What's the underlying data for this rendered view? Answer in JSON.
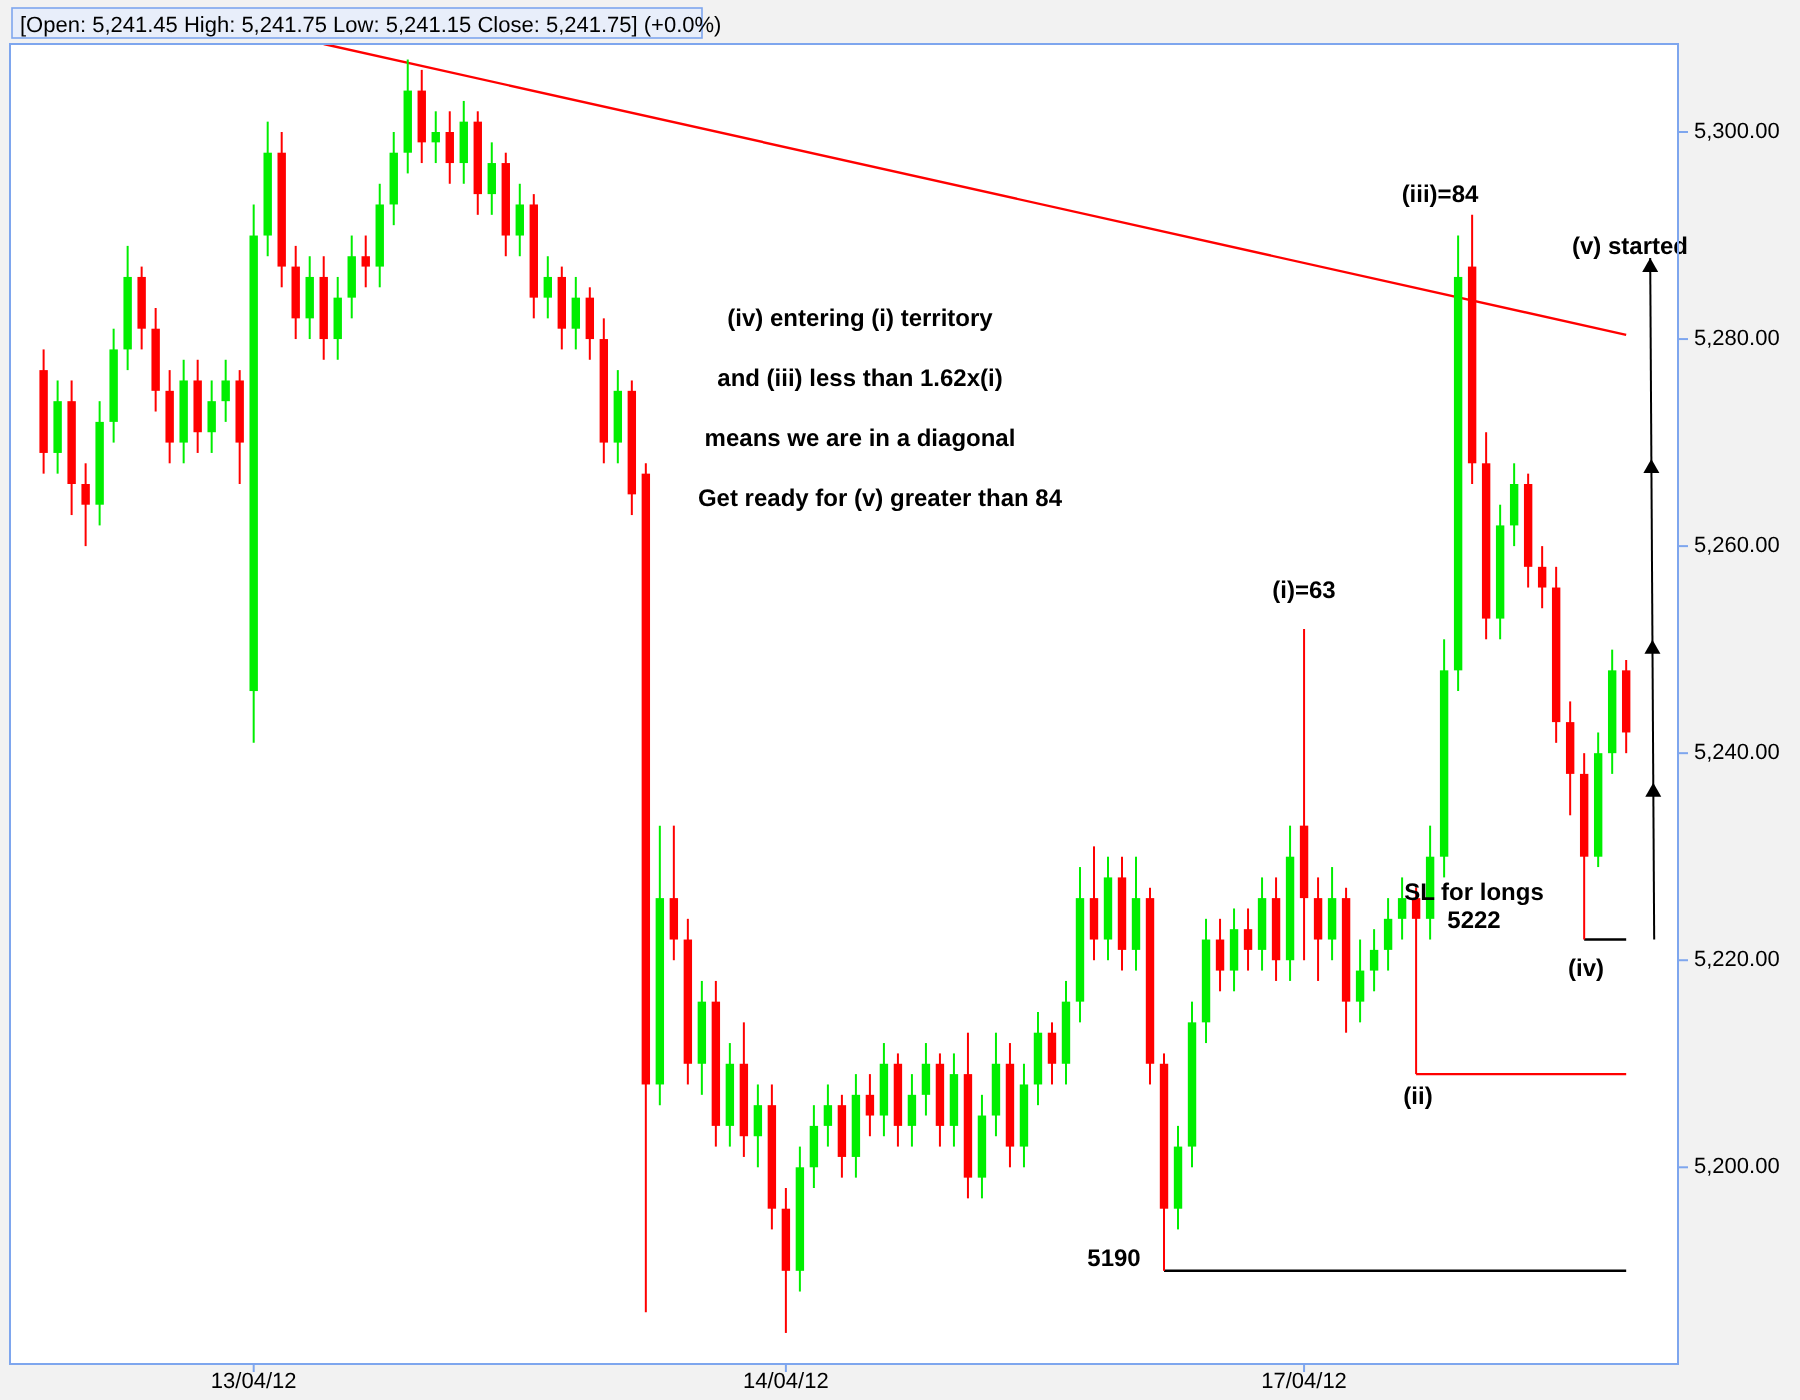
{
  "chart_data": {
    "type": "candlestick",
    "title": "[Open: 5,241.45 High: 5,241.75 Low: 5,241.15 Close: 5,241.75] (+0.0%)",
    "categories": [
      null,
      null,
      null,
      null,
      null,
      null,
      null,
      null,
      null,
      null,
      null,
      null,
      null,
      null,
      null,
      "13/04/12",
      null,
      null,
      null,
      null,
      null,
      null,
      null,
      null,
      null,
      null,
      null,
      null,
      null,
      null,
      null,
      null,
      null,
      null,
      null,
      null,
      null,
      null,
      null,
      null,
      null,
      null,
      null,
      null,
      null,
      null,
      null,
      null,
      null,
      null,
      null,
      null,
      null,
      "14/04/12",
      null,
      null,
      null,
      null,
      null,
      null,
      null,
      null,
      null,
      null,
      null,
      null,
      null,
      null,
      null,
      null,
      null,
      null,
      null,
      null,
      null,
      null,
      null,
      null,
      null,
      null,
      null,
      null,
      null,
      null,
      null,
      null,
      null,
      null,
      null,
      null,
      "17/04/12",
      null,
      null,
      null,
      null,
      null,
      null,
      null,
      null,
      null,
      null,
      null,
      null,
      null,
      null,
      null,
      null,
      null,
      null,
      null,
      null,
      null,
      null,
      null
    ],
    "ohlc": [
      [
        5277,
        5279,
        5267,
        5269
      ],
      [
        5269,
        5276,
        5267,
        5274
      ],
      [
        5274,
        5276,
        5263,
        5266
      ],
      [
        5266,
        5268,
        5260,
        5264
      ],
      [
        5264,
        5274,
        5262,
        5272
      ],
      [
        5272,
        5281,
        5270,
        5279
      ],
      [
        5279,
        5289,
        5277,
        5286
      ],
      [
        5286,
        5287,
        5279,
        5281
      ],
      [
        5281,
        5283,
        5273,
        5275
      ],
      [
        5275,
        5277,
        5268,
        5270
      ],
      [
        5270,
        5278,
        5268,
        5276
      ],
      [
        5276,
        5278,
        5269,
        5271
      ],
      [
        5271,
        5276,
        5269,
        5274
      ],
      [
        5274,
        5278,
        5272,
        5276
      ],
      [
        5276,
        5277,
        5266,
        5270
      ],
      [
        5246,
        5293,
        5241,
        5290
      ],
      [
        5290,
        5301,
        5288,
        5298
      ],
      [
        5298,
        5300,
        5285,
        5287
      ],
      [
        5287,
        5289,
        5280,
        5282
      ],
      [
        5282,
        5288,
        5280,
        5286
      ],
      [
        5286,
        5288,
        5278,
        5280
      ],
      [
        5280,
        5286,
        5278,
        5284
      ],
      [
        5284,
        5290,
        5282,
        5288
      ],
      [
        5288,
        5290,
        5285,
        5287
      ],
      [
        5287,
        5295,
        5285,
        5293
      ],
      [
        5293,
        5300,
        5291,
        5298
      ],
      [
        5298,
        5307,
        5296,
        5304
      ],
      [
        5304,
        5306,
        5297,
        5299
      ],
      [
        5299,
        5302,
        5297,
        5300
      ],
      [
        5300,
        5302,
        5295,
        5297
      ],
      [
        5297,
        5303,
        5295,
        5301
      ],
      [
        5301,
        5302,
        5292,
        5294
      ],
      [
        5294,
        5299,
        5292,
        5297
      ],
      [
        5297,
        5298,
        5288,
        5290
      ],
      [
        5290,
        5295,
        5288,
        5293
      ],
      [
        5293,
        5294,
        5282,
        5284
      ],
      [
        5284,
        5288,
        5282,
        5286
      ],
      [
        5286,
        5287,
        5279,
        5281
      ],
      [
        5281,
        5286,
        5279,
        5284
      ],
      [
        5284,
        5285,
        5278,
        5280
      ],
      [
        5280,
        5282,
        5268,
        5270
      ],
      [
        5270,
        5277,
        5268,
        5275
      ],
      [
        5275,
        5276,
        5263,
        5265
      ],
      [
        5267,
        5268,
        5186,
        5208
      ],
      [
        5208,
        5233,
        5206,
        5226
      ],
      [
        5226,
        5233,
        5220,
        5222
      ],
      [
        5222,
        5224,
        5208,
        5210
      ],
      [
        5210,
        5218,
        5207,
        5216
      ],
      [
        5216,
        5218,
        5202,
        5204
      ],
      [
        5204,
        5212,
        5202,
        5210
      ],
      [
        5210,
        5214,
        5201,
        5203
      ],
      [
        5203,
        5208,
        5200,
        5206
      ],
      [
        5206,
        5208,
        5194,
        5196
      ],
      [
        5196,
        5198,
        5184,
        5190
      ],
      [
        5190,
        5202,
        5188,
        5200
      ],
      [
        5200,
        5206,
        5198,
        5204
      ],
      [
        5204,
        5208,
        5202,
        5206
      ],
      [
        5206,
        5207,
        5199,
        5201
      ],
      [
        5201,
        5209,
        5199,
        5207
      ],
      [
        5207,
        5209,
        5203,
        5205
      ],
      [
        5205,
        5212,
        5203,
        5210
      ],
      [
        5210,
        5211,
        5202,
        5204
      ],
      [
        5204,
        5209,
        5202,
        5207
      ],
      [
        5207,
        5212,
        5205,
        5210
      ],
      [
        5210,
        5211,
        5202,
        5204
      ],
      [
        5204,
        5211,
        5202,
        5209
      ],
      [
        5209,
        5213,
        5197,
        5199
      ],
      [
        5199,
        5207,
        5197,
        5205
      ],
      [
        5205,
        5213,
        5203,
        5210
      ],
      [
        5210,
        5212,
        5200,
        5202
      ],
      [
        5202,
        5210,
        5200,
        5208
      ],
      [
        5208,
        5215,
        5206,
        5213
      ],
      [
        5213,
        5214,
        5208,
        5210
      ],
      [
        5210,
        5218,
        5208,
        5216
      ],
      [
        5216,
        5229,
        5214,
        5226
      ],
      [
        5226,
        5231,
        5220,
        5222
      ],
      [
        5222,
        5230,
        5220,
        5228
      ],
      [
        5228,
        5230,
        5219,
        5221
      ],
      [
        5221,
        5230,
        5219,
        5226
      ],
      [
        5226,
        5227,
        5208,
        5210
      ],
      [
        5210,
        5211,
        5190,
        5196
      ],
      [
        5196,
        5204,
        5194,
        5202
      ],
      [
        5202,
        5216,
        5200,
        5214
      ],
      [
        5214,
        5224,
        5212,
        5222
      ],
      [
        5222,
        5224,
        5217,
        5219
      ],
      [
        5219,
        5225,
        5217,
        5223
      ],
      [
        5223,
        5225,
        5219,
        5221
      ],
      [
        5221,
        5228,
        5219,
        5226
      ],
      [
        5226,
        5228,
        5218,
        5220
      ],
      [
        5220,
        5233,
        5218,
        5230
      ],
      [
        5233,
        5252,
        5220,
        5226
      ],
      [
        5226,
        5228,
        5218,
        5222
      ],
      [
        5222,
        5229,
        5220,
        5226
      ],
      [
        5226,
        5227,
        5213,
        5216
      ],
      [
        5216,
        5222,
        5214,
        5219
      ],
      [
        5219,
        5223,
        5217,
        5221
      ],
      [
        5221,
        5226,
        5219,
        5224
      ],
      [
        5224,
        5228,
        5222,
        5226
      ],
      [
        5226,
        5227,
        5209,
        5224
      ],
      [
        5224,
        5233,
        5222,
        5230
      ],
      [
        5230,
        5251,
        5228,
        5248
      ],
      [
        5248,
        5290,
        5246,
        5286
      ],
      [
        5287,
        5292,
        5266,
        5268
      ],
      [
        5268,
        5271,
        5251,
        5253
      ],
      [
        5253,
        5264,
        5251,
        5262
      ],
      [
        5262,
        5268,
        5260,
        5266
      ],
      [
        5266,
        5267,
        5256,
        5258
      ],
      [
        5258,
        5260,
        5254,
        5256
      ],
      [
        5256,
        5258,
        5241,
        5243
      ],
      [
        5243,
        5245,
        5234,
        5238
      ],
      [
        5238,
        5240,
        5222,
        5230
      ],
      [
        5230,
        5242,
        5229,
        5240
      ],
      [
        5240,
        5250,
        5238,
        5248
      ],
      [
        5248,
        5249,
        5240,
        5242
      ]
    ],
    "colors": [
      "#ff0000",
      "#00ee00",
      "#ff0000",
      "#ff0000",
      "#00ee00",
      "#00ee00",
      "#00ee00",
      "#ff0000",
      "#ff0000",
      "#ff0000",
      "#00ee00",
      "#ff0000",
      "#00ee00",
      "#00ee00",
      "#ff0000",
      "#00ee00",
      "#00ee00",
      "#ff0000",
      "#ff0000",
      "#00ee00",
      "#ff0000",
      "#00ee00",
      "#00ee00",
      "#ff0000",
      "#00ee00",
      "#00ee00",
      "#00ee00",
      "#ff0000",
      "#00ee00",
      "#ff0000",
      "#00ee00",
      "#ff0000",
      "#00ee00",
      "#ff0000",
      "#00ee00",
      "#ff0000",
      "#00ee00",
      "#ff0000",
      "#00ee00",
      "#ff0000",
      "#ff0000",
      "#00ee00",
      "#ff0000",
      "#ff0000",
      "#00ee00",
      "#ff0000",
      "#ff0000",
      "#00ee00",
      "#ff0000",
      "#00ee00",
      "#ff0000",
      "#00ee00",
      "#ff0000",
      "#ff0000",
      "#00ee00",
      "#00ee00",
      "#00ee00",
      "#ff0000",
      "#00ee00",
      "#ff0000",
      "#00ee00",
      "#ff0000",
      "#00ee00",
      "#00ee00",
      "#ff0000",
      "#00ee00",
      "#ff0000",
      "#00ee00",
      "#00ee00",
      "#ff0000",
      "#00ee00",
      "#00ee00",
      "#ff0000",
      "#00ee00",
      "#00ee00",
      "#ff0000",
      "#00ee00",
      "#ff0000",
      "#00ee00",
      "#ff0000",
      "#ff0000",
      "#00ee00",
      "#00ee00",
      "#00ee00",
      "#ff0000",
      "#00ee00",
      "#ff0000",
      "#00ee00",
      "#ff0000",
      "#00ee00",
      "#ff0000",
      "#ff0000",
      "#00ee00",
      "#ff0000",
      "#00ee00",
      "#00ee00",
      "#00ee00",
      "#00ee00",
      "#ff0000",
      "#00ee00",
      "#00ee00",
      "#00ee00",
      "#ff0000",
      "#ff0000",
      "#00ee00",
      "#00ee00",
      "#ff0000",
      "#ff0000",
      "#ff0000",
      "#ff0000",
      "#ff0000",
      "#00ee00",
      "#00ee00",
      "#ff0000"
    ],
    "series": [
      {
        "type": "line",
        "values": [
          null,
          null,
          null,
          null,
          null,
          null,
          null,
          null,
          null,
          null,
          null,
          null,
          null,
          null,
          null,
          null,
          null,
          null,
          null,
          null,
          5308.5,
          null,
          null,
          null,
          null,
          null,
          null,
          null,
          null,
          null,
          null,
          null,
          null,
          null,
          null,
          null,
          null,
          null,
          null,
          null,
          null,
          null,
          null,
          null,
          null,
          null,
          null,
          null,
          null,
          null,
          null,
          null,
          null,
          null,
          null,
          null,
          null,
          null,
          null,
          null,
          null,
          null,
          null,
          null,
          null,
          null,
          null,
          null,
          null,
          null,
          null,
          null,
          null,
          null,
          null,
          null,
          null,
          null,
          null,
          null,
          null,
          null,
          null,
          null,
          null,
          null,
          null,
          null,
          null,
          null,
          null,
          null,
          null,
          null,
          null,
          null,
          null,
          null,
          null,
          null,
          null,
          null,
          null,
          null,
          null,
          null,
          null,
          null,
          null,
          null,
          null,
          null,
          null,
          5280.4
        ],
        "color": "#ff0000"
      },
      {
        "type": "line",
        "values": [
          null,
          null,
          null,
          null,
          null,
          null,
          null,
          null,
          null,
          null,
          null,
          null,
          null,
          null,
          null,
          null,
          null,
          null,
          null,
          null,
          null,
          null,
          null,
          null,
          null,
          null,
          null,
          null,
          null,
          null,
          null,
          null,
          null,
          null,
          null,
          null,
          null,
          null,
          null,
          null,
          null,
          null,
          null,
          null,
          null,
          null,
          null,
          null,
          null,
          null,
          null,
          null,
          null,
          null,
          null,
          null,
          null,
          null,
          null,
          null,
          null,
          null,
          null,
          null,
          null,
          null,
          null,
          null,
          null,
          null,
          null,
          null,
          null,
          null,
          null,
          null,
          null,
          null,
          null,
          null,
          5190,
          null,
          null,
          null,
          null,
          null,
          null,
          null,
          null,
          null,
          null,
          null,
          null,
          null,
          null,
          null,
          null,
          null,
          null,
          null,
          null,
          null,
          null,
          null,
          null,
          null,
          null,
          null,
          null,
          null,
          null,
          null,
          null,
          5190
        ],
        "color": "#000000"
      },
      {
        "type": "line",
        "values": [
          null,
          null,
          null,
          null,
          null,
          null,
          null,
          null,
          null,
          null,
          null,
          null,
          null,
          null,
          null,
          null,
          null,
          null,
          null,
          null,
          null,
          null,
          null,
          null,
          null,
          null,
          null,
          null,
          null,
          null,
          null,
          null,
          null,
          null,
          null,
          null,
          null,
          null,
          null,
          null,
          null,
          null,
          null,
          null,
          null,
          null,
          null,
          null,
          null,
          null,
          null,
          null,
          null,
          null,
          null,
          null,
          null,
          null,
          null,
          null,
          null,
          null,
          null,
          null,
          null,
          null,
          null,
          null,
          null,
          null,
          null,
          null,
          null,
          null,
          null,
          null,
          null,
          null,
          null,
          null,
          null,
          null,
          null,
          null,
          null,
          null,
          null,
          null,
          null,
          null,
          null,
          null,
          null,
          null,
          null,
          null,
          null,
          null,
          5209,
          null,
          null,
          null,
          null,
          null,
          null,
          null,
          null,
          null,
          null,
          null,
          null,
          null,
          null,
          5209
        ],
        "color": "#ff0000"
      },
      {
        "type": "line",
        "values": [
          null,
          null,
          null,
          null,
          null,
          null,
          null,
          null,
          null,
          null,
          null,
          null,
          null,
          null,
          null,
          null,
          null,
          null,
          null,
          null,
          null,
          null,
          null,
          null,
          null,
          null,
          null,
          null,
          null,
          null,
          null,
          null,
          null,
          null,
          null,
          null,
          null,
          null,
          null,
          null,
          null,
          null,
          null,
          null,
          null,
          null,
          null,
          null,
          null,
          null,
          null,
          null,
          null,
          null,
          null,
          null,
          null,
          null,
          null,
          null,
          null,
          null,
          null,
          null,
          null,
          null,
          null,
          null,
          null,
          null,
          null,
          null,
          null,
          null,
          null,
          null,
          null,
          null,
          null,
          null,
          null,
          null,
          null,
          null,
          null,
          null,
          null,
          null,
          null,
          null,
          null,
          null,
          null,
          null,
          null,
          null,
          null,
          null,
          null,
          null,
          null,
          null,
          null,
          null,
          null,
          null,
          null,
          null,
          null,
          null,
          5222,
          null,
          null,
          5222
        ],
        "color": "#000000"
      }
    ],
    "ylim": [
      5181,
      5308.5
    ],
    "yticks": [
      {
        "value": 5200,
        "label": "5,200.00"
      },
      {
        "value": 5220,
        "label": "5,220.00"
      },
      {
        "value": 5240,
        "label": "5,240.00"
      },
      {
        "value": 5260,
        "label": "5,260.00"
      },
      {
        "value": 5280,
        "label": "5,280.00"
      },
      {
        "value": 5300,
        "label": "5,300.00"
      }
    ],
    "annotations": [
      "(iv) entering (i) territory",
      "and (iii) less than 1.62x(i)",
      "means we are in a diagonal",
      "Get ready for (v) greater than 84",
      "(i)=63",
      "(iii)=84",
      "(ii)",
      "SL for longs\n5222",
      "(iv)",
      "5190",
      "(v) started"
    ]
  }
}
